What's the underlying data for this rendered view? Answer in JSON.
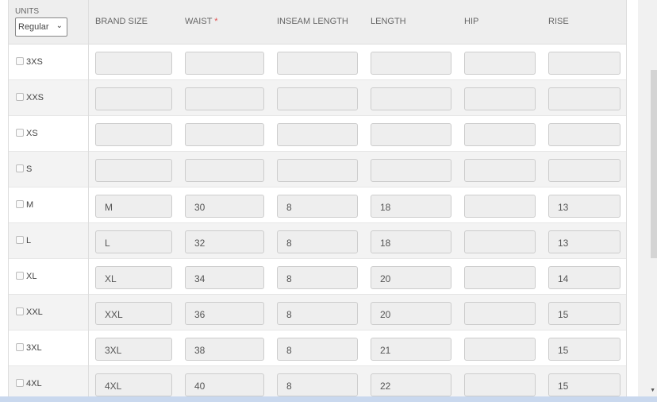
{
  "units": {
    "label": "UNITS",
    "selected": "Regular"
  },
  "headers": {
    "brand_size": "BRAND SIZE",
    "waist": "WAIST",
    "waist_required": "*",
    "inseam": "INSEAM LENGTH",
    "length": "LENGTH",
    "hip": "HIP",
    "rise": "RISE"
  },
  "rows": [
    {
      "size": "3XS",
      "brand": "",
      "waist": "",
      "inseam": "",
      "length": "",
      "hip": "",
      "rise": ""
    },
    {
      "size": "XXS",
      "brand": "",
      "waist": "",
      "inseam": "",
      "length": "",
      "hip": "",
      "rise": ""
    },
    {
      "size": "XS",
      "brand": "",
      "waist": "",
      "inseam": "",
      "length": "",
      "hip": "",
      "rise": ""
    },
    {
      "size": "S",
      "brand": "",
      "waist": "",
      "inseam": "",
      "length": "",
      "hip": "",
      "rise": ""
    },
    {
      "size": "M",
      "brand": "M",
      "waist": "30",
      "inseam": "8",
      "length": "18",
      "hip": "",
      "rise": "13"
    },
    {
      "size": "L",
      "brand": "L",
      "waist": "32",
      "inseam": "8",
      "length": "18",
      "hip": "",
      "rise": "13"
    },
    {
      "size": "XL",
      "brand": "XL",
      "waist": "34",
      "inseam": "8",
      "length": "20",
      "hip": "",
      "rise": "14"
    },
    {
      "size": "XXL",
      "brand": "XXL",
      "waist": "36",
      "inseam": "8",
      "length": "20",
      "hip": "",
      "rise": "15"
    },
    {
      "size": "3XL",
      "brand": "3XL",
      "waist": "38",
      "inseam": "8",
      "length": "21",
      "hip": "",
      "rise": "15"
    },
    {
      "size": "4XL",
      "brand": "4XL",
      "waist": "40",
      "inseam": "8",
      "length": "22",
      "hip": "",
      "rise": "15"
    }
  ]
}
